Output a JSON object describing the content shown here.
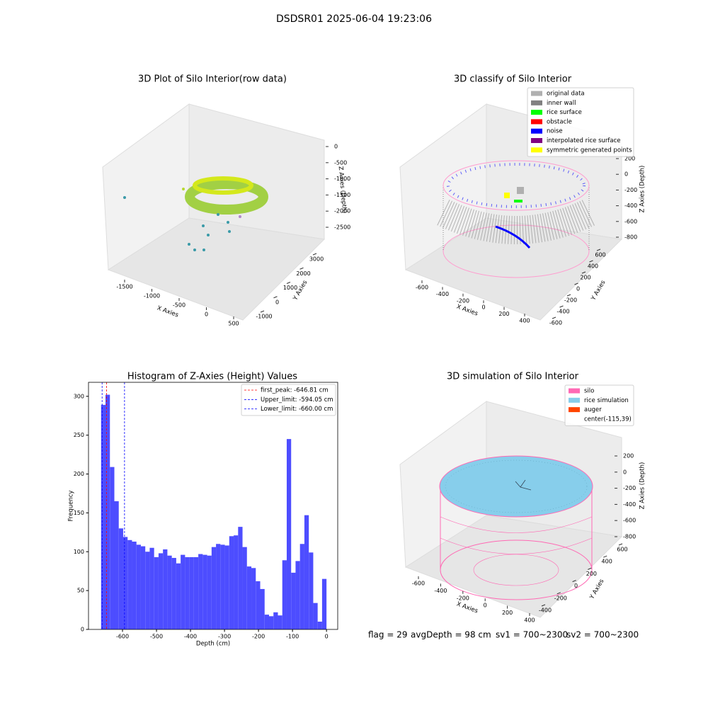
{
  "title": "DSDSR01 2025-06-04 19:23:06",
  "chart_data": [
    {
      "type": "scatter3d",
      "title": "3D Plot of Silo Interior(row data)",
      "xlabel": "X Axies",
      "ylabel": "Y Axies",
      "zlabel": "Z Axies (Depth)",
      "xticks": [
        -1500,
        -1000,
        -500,
        0,
        500
      ],
      "yticks": [
        -1000,
        0,
        1000,
        2000,
        3000
      ],
      "zticks": [
        0,
        -500,
        -1000,
        -1500,
        -2000,
        -2500
      ]
    },
    {
      "type": "scatter3d",
      "title": "3D classify of Silo Interior",
      "xlabel": "X Axies",
      "ylabel": "Y Axies",
      "zlabel": "Z Axies (Depth)",
      "xticks": [
        -600,
        -400,
        -200,
        0,
        200,
        400
      ],
      "yticks": [
        -600,
        -400,
        -200,
        0,
        200,
        400,
        600
      ],
      "zticks": [
        200,
        0,
        -200,
        -400,
        -600,
        -800
      ],
      "legend_loc": "upper right",
      "legend": [
        {
          "name": "original data",
          "color": "#b0b0b0"
        },
        {
          "name": "inner wall",
          "color": "#808080"
        },
        {
          "name": "rice surface",
          "color": "#00ff00"
        },
        {
          "name": "obstacle",
          "color": "#ff0000"
        },
        {
          "name": "noise",
          "color": "#0000ff"
        },
        {
          "name": "interpolated rice surface",
          "color": "#800080"
        },
        {
          "name": "symmetric generated points",
          "color": "#ffff00"
        }
      ]
    },
    {
      "type": "histogram",
      "title": "Histogram of Z-Axies (Height) Values",
      "xlabel": "Depth (cm)",
      "ylabel": "Frequency",
      "color": "#4d4dff",
      "bins": [
        -663,
        -650,
        -637,
        -624,
        -611,
        -598,
        -585,
        -572,
        -559,
        -546,
        -533,
        -520,
        -507,
        -494,
        -481,
        -468,
        -455,
        -442,
        -429,
        -416,
        -403,
        -390,
        -377,
        -364,
        -351,
        -338,
        -325,
        -312,
        -299,
        -286,
        -273,
        -260,
        -247,
        -234,
        -221,
        -208,
        -195,
        -182,
        -169,
        -156,
        -143,
        -130,
        -117,
        -104,
        -91,
        -78,
        -65,
        -52,
        -39,
        -26,
        -13,
        0
      ],
      "values": [
        289,
        302,
        209,
        165,
        130,
        119,
        115,
        113,
        109,
        107,
        100,
        105,
        93,
        98,
        103,
        95,
        92,
        85,
        96,
        93,
        93,
        93,
        97,
        96,
        95,
        106,
        110,
        109,
        108,
        120,
        121,
        132,
        106,
        81,
        79,
        62,
        52,
        19,
        17,
        22,
        18,
        89,
        245,
        73,
        88,
        110,
        147,
        99,
        34,
        10,
        65
      ],
      "xlim": [
        -700,
        33
      ],
      "ylim": [
        0,
        318
      ],
      "xticks": [
        -600,
        -500,
        -400,
        -300,
        -200,
        -100,
        0
      ],
      "yticks": [
        0,
        50,
        100,
        150,
        200,
        250,
        300
      ],
      "legend_loc": "upper right",
      "vlines": [
        {
          "name": "first_peak: -646.81 cm",
          "value": -646.81,
          "color": "#ff0000"
        },
        {
          "name": "Upper_limit: -594.05 cm",
          "value": -594.05,
          "color": "#0000ff"
        },
        {
          "name": "Lower_limit: -660.00 cm",
          "value": -660.0,
          "color": "#0000ff"
        }
      ]
    },
    {
      "type": "surface3d",
      "title": "3D simulation of Silo Interior",
      "xlabel": "X Axies",
      "ylabel": "Y Axies",
      "zlabel": "Z Axies (Depth)",
      "xticks": [
        -600,
        -400,
        -200,
        0,
        200,
        400
      ],
      "yticks": [
        -400,
        -200,
        0,
        200,
        400,
        600
      ],
      "zticks": [
        200,
        0,
        -200,
        -400,
        -600,
        -800
      ],
      "legend_loc": "upper right",
      "legend": [
        {
          "name": "silo",
          "color": "#ff69b4"
        },
        {
          "name": "rice simulation",
          "color": "#87ceeb"
        },
        {
          "name": "auger",
          "color": "#ff4500"
        },
        {
          "name": "center(-115,39)"
        }
      ]
    }
  ],
  "footer": [
    "flag = 29",
    "avgDepth = 98 cm",
    "sv1 = 700~2300",
    "sv2 = 700~2300"
  ]
}
